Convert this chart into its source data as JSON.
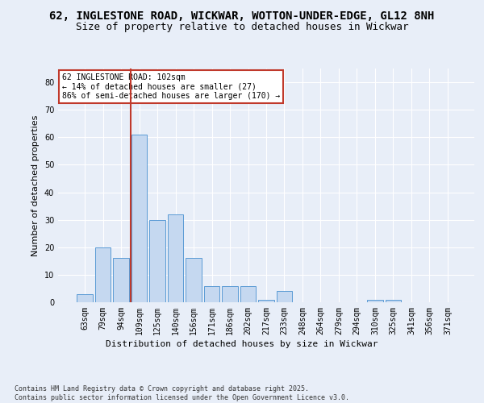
{
  "title1": "62, INGLESTONE ROAD, WICKWAR, WOTTON-UNDER-EDGE, GL12 8NH",
  "title2": "Size of property relative to detached houses in Wickwar",
  "xlabel": "Distribution of detached houses by size in Wickwar",
  "ylabel": "Number of detached properties",
  "categories": [
    "63sqm",
    "79sqm",
    "94sqm",
    "109sqm",
    "125sqm",
    "140sqm",
    "156sqm",
    "171sqm",
    "186sqm",
    "202sqm",
    "217sqm",
    "233sqm",
    "248sqm",
    "264sqm",
    "279sqm",
    "294sqm",
    "310sqm",
    "325sqm",
    "341sqm",
    "356sqm",
    "371sqm"
  ],
  "values": [
    3,
    20,
    16,
    61,
    30,
    32,
    16,
    6,
    6,
    6,
    1,
    4,
    0,
    0,
    0,
    0,
    1,
    1,
    0,
    0,
    0
  ],
  "bar_color": "#c5d8f0",
  "bar_edge_color": "#5b9bd5",
  "vline_color": "#c0392b",
  "annotation_text": "62 INGLESTONE ROAD: 102sqm\n← 14% of detached houses are smaller (27)\n86% of semi-detached houses are larger (170) →",
  "annotation_box_color": "#ffffff",
  "annotation_edge_color": "#c0392b",
  "ylim": [
    0,
    85
  ],
  "yticks": [
    0,
    10,
    20,
    30,
    40,
    50,
    60,
    70,
    80
  ],
  "footer": "Contains HM Land Registry data © Crown copyright and database right 2025.\nContains public sector information licensed under the Open Government Licence v3.0.",
  "bg_color": "#e8eef8",
  "plot_bg_color": "#e8eef8",
  "grid_color": "#ffffff",
  "title_fontsize": 10,
  "subtitle_fontsize": 9,
  "axis_fontsize": 8,
  "tick_fontsize": 7
}
